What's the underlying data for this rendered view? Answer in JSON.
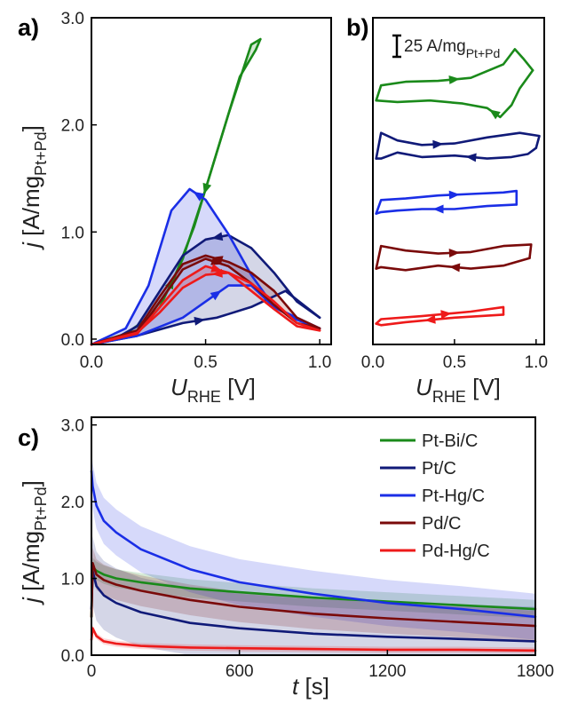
{
  "panel_labels": {
    "a": "a)",
    "b": "b)",
    "c": "c)"
  },
  "colors": {
    "Pt-Bi/C": "#1a8a1a",
    "Pt/C": "#101a78",
    "Pt-Hg/C": "#1a2ee6",
    "Pd/C": "#7a0a0a",
    "Pd-Hg/C": "#ee1a1a"
  },
  "chart_data": [
    {
      "type": "line",
      "panel": "a)",
      "xlabel": {
        "main": "U",
        "sub": "RHE",
        "unit": " [V]"
      },
      "ylabel": {
        "main": "j",
        "unit_pre": " [A/mg",
        "sub": "Pt+Pd",
        "unit_post": "]"
      },
      "xlim": [
        0.0,
        1.05
      ],
      "ylim": [
        -0.05,
        3.0
      ],
      "xticks": [
        "0.0",
        "0.5",
        "1.0"
      ],
      "yticks": [
        "0.0",
        "1.0",
        "2.0",
        "3.0"
      ],
      "series": [
        {
          "name": "Pt-Bi/C",
          "forward": [
            [
              0.0,
              -0.05
            ],
            [
              0.1,
              0.0
            ],
            [
              0.2,
              0.05
            ],
            [
              0.3,
              0.3
            ],
            [
              0.4,
              0.75
            ],
            [
              0.5,
              1.4
            ],
            [
              0.6,
              2.1
            ],
            [
              0.7,
              2.75
            ],
            [
              0.74,
              2.8
            ]
          ],
          "backward": [
            [
              0.74,
              2.8
            ],
            [
              0.72,
              2.7
            ],
            [
              0.65,
              2.45
            ],
            [
              0.55,
              1.75
            ],
            [
              0.45,
              1.05
            ],
            [
              0.35,
              0.5
            ],
            [
              0.25,
              0.2
            ],
            [
              0.15,
              0.05
            ],
            [
              0.0,
              -0.05
            ]
          ]
        },
        {
          "name": "Pt/C",
          "forward": [
            [
              0.0,
              -0.05
            ],
            [
              0.2,
              0.03
            ],
            [
              0.4,
              0.15
            ],
            [
              0.55,
              0.2
            ],
            [
              0.7,
              0.3
            ],
            [
              0.85,
              0.45
            ],
            [
              1.0,
              0.2
            ]
          ],
          "backward": [
            [
              1.0,
              0.2
            ],
            [
              0.9,
              0.35
            ],
            [
              0.8,
              0.62
            ],
            [
              0.7,
              0.85
            ],
            [
              0.6,
              0.97
            ],
            [
              0.5,
              0.93
            ],
            [
              0.4,
              0.78
            ],
            [
              0.3,
              0.45
            ],
            [
              0.2,
              0.12
            ],
            [
              0.1,
              0.0
            ],
            [
              0.0,
              -0.05
            ]
          ]
        },
        {
          "name": "Pt-Hg/C",
          "forward": [
            [
              0.0,
              -0.05
            ],
            [
              0.2,
              0.03
            ],
            [
              0.4,
              0.2
            ],
            [
              0.5,
              0.35
            ],
            [
              0.6,
              0.5
            ],
            [
              0.7,
              0.5
            ],
            [
              0.8,
              0.3
            ],
            [
              0.9,
              0.18
            ],
            [
              1.0,
              0.1
            ]
          ],
          "backward": [
            [
              1.0,
              0.1
            ],
            [
              0.8,
              0.3
            ],
            [
              0.7,
              0.6
            ],
            [
              0.6,
              0.98
            ],
            [
              0.5,
              1.3
            ],
            [
              0.43,
              1.4
            ],
            [
              0.35,
              1.2
            ],
            [
              0.25,
              0.5
            ],
            [
              0.15,
              0.1
            ],
            [
              0.0,
              -0.05
            ]
          ]
        },
        {
          "name": "Pd/C",
          "forward": [
            [
              0.0,
              -0.05
            ],
            [
              0.2,
              0.05
            ],
            [
              0.3,
              0.35
            ],
            [
              0.4,
              0.65
            ],
            [
              0.5,
              0.75
            ],
            [
              0.6,
              0.68
            ],
            [
              0.7,
              0.52
            ],
            [
              0.8,
              0.32
            ],
            [
              0.9,
              0.15
            ],
            [
              1.0,
              0.1
            ]
          ],
          "backward": [
            [
              1.0,
              0.1
            ],
            [
              0.9,
              0.2
            ],
            [
              0.8,
              0.45
            ],
            [
              0.7,
              0.62
            ],
            [
              0.6,
              0.72
            ],
            [
              0.5,
              0.78
            ],
            [
              0.4,
              0.7
            ],
            [
              0.3,
              0.4
            ],
            [
              0.2,
              0.08
            ],
            [
              0.0,
              -0.05
            ]
          ]
        },
        {
          "name": "Pd-Hg/C",
          "forward": [
            [
              0.0,
              -0.05
            ],
            [
              0.2,
              0.05
            ],
            [
              0.3,
              0.3
            ],
            [
              0.4,
              0.55
            ],
            [
              0.5,
              0.68
            ],
            [
              0.6,
              0.62
            ],
            [
              0.7,
              0.45
            ],
            [
              0.8,
              0.28
            ],
            [
              0.9,
              0.12
            ],
            [
              1.0,
              0.08
            ]
          ],
          "backward": [
            [
              1.0,
              0.08
            ],
            [
              0.9,
              0.15
            ],
            [
              0.8,
              0.35
            ],
            [
              0.7,
              0.52
            ],
            [
              0.6,
              0.62
            ],
            [
              0.5,
              0.6
            ],
            [
              0.4,
              0.48
            ],
            [
              0.3,
              0.25
            ],
            [
              0.2,
              0.06
            ],
            [
              0.0,
              -0.05
            ]
          ]
        }
      ]
    },
    {
      "type": "line",
      "panel": "b)",
      "xlabel": {
        "main": "U",
        "sub": "RHE",
        "unit": " [V]"
      },
      "xlim": [
        0.0,
        1.05
      ],
      "xticks": [
        "0.0",
        "0.5",
        "1.0"
      ],
      "scalebar": {
        "value": "25 A/mg",
        "sub": "Pt+Pd"
      },
      "series": [
        {
          "name": "Pt-Bi/C",
          "offset": 4,
          "forward": [
            [
              0.02,
              0.2
            ],
            [
              0.05,
              0.7
            ],
            [
              0.2,
              0.82
            ],
            [
              0.4,
              0.85
            ],
            [
              0.6,
              0.95
            ],
            [
              0.8,
              1.4
            ],
            [
              0.87,
              1.9
            ],
            [
              0.92,
              1.6
            ],
            [
              0.98,
              1.2
            ]
          ],
          "backward": [
            [
              0.98,
              1.2
            ],
            [
              0.9,
              0.6
            ],
            [
              0.85,
              0.05
            ],
            [
              0.78,
              -0.35
            ],
            [
              0.7,
              -0.05
            ],
            [
              0.55,
              0.1
            ],
            [
              0.35,
              0.2
            ],
            [
              0.15,
              0.15
            ],
            [
              0.02,
              0.2
            ]
          ]
        },
        {
          "name": "Pt/C",
          "offset": 3,
          "forward": [
            [
              0.02,
              0.1
            ],
            [
              0.05,
              0.95
            ],
            [
              0.15,
              0.7
            ],
            [
              0.3,
              0.55
            ],
            [
              0.5,
              0.6
            ],
            [
              0.7,
              0.8
            ],
            [
              0.9,
              0.95
            ],
            [
              1.02,
              0.85
            ],
            [
              1.0,
              0.45
            ]
          ],
          "backward": [
            [
              1.0,
              0.45
            ],
            [
              0.95,
              0.25
            ],
            [
              0.85,
              0.15
            ],
            [
              0.7,
              0.1
            ],
            [
              0.5,
              0.2
            ],
            [
              0.3,
              0.15
            ],
            [
              0.15,
              0.3
            ],
            [
              0.05,
              0.1
            ],
            [
              0.02,
              0.1
            ]
          ]
        },
        {
          "name": "Pt-Hg/C",
          "offset": 2,
          "forward": [
            [
              0.02,
              0.1
            ],
            [
              0.05,
              0.55
            ],
            [
              0.2,
              0.6
            ],
            [
              0.4,
              0.7
            ],
            [
              0.6,
              0.75
            ],
            [
              0.8,
              0.8
            ],
            [
              0.88,
              0.85
            ],
            [
              0.88,
              0.4
            ]
          ],
          "backward": [
            [
              0.88,
              0.4
            ],
            [
              0.7,
              0.35
            ],
            [
              0.5,
              0.25
            ],
            [
              0.3,
              0.25
            ],
            [
              0.15,
              0.2
            ],
            [
              0.05,
              0.15
            ],
            [
              0.02,
              0.1
            ]
          ]
        },
        {
          "name": "Pd/C",
          "offset": 1,
          "forward": [
            [
              0.02,
              0.1
            ],
            [
              0.05,
              0.85
            ],
            [
              0.2,
              0.7
            ],
            [
              0.4,
              0.6
            ],
            [
              0.6,
              0.65
            ],
            [
              0.8,
              0.85
            ],
            [
              0.97,
              0.9
            ],
            [
              0.96,
              0.45
            ]
          ],
          "backward": [
            [
              0.96,
              0.45
            ],
            [
              0.8,
              0.2
            ],
            [
              0.6,
              0.1
            ],
            [
              0.4,
              0.2
            ],
            [
              0.2,
              0.05
            ],
            [
              0.05,
              0.15
            ],
            [
              0.02,
              0.1
            ]
          ]
        },
        {
          "name": "Pd-Hg/C",
          "offset": 0,
          "forward": [
            [
              0.02,
              0.1
            ],
            [
              0.05,
              0.25
            ],
            [
              0.3,
              0.35
            ],
            [
              0.6,
              0.5
            ],
            [
              0.8,
              0.65
            ],
            [
              0.8,
              0.4
            ]
          ],
          "backward": [
            [
              0.8,
              0.4
            ],
            [
              0.5,
              0.3
            ],
            [
              0.2,
              0.15
            ],
            [
              0.05,
              0.05
            ],
            [
              0.02,
              0.1
            ]
          ]
        }
      ]
    },
    {
      "type": "line",
      "panel": "c)",
      "xlabel": {
        "main": "t",
        "unit": " [s]"
      },
      "ylabel": {
        "main": "j",
        "unit_pre": " [A/mg",
        "sub": "Pt+Pd",
        "unit_post": "]"
      },
      "xlim": [
        0,
        1800
      ],
      "ylim": [
        0.0,
        3.1
      ],
      "xticks": [
        "0",
        "600",
        "1200",
        "1800"
      ],
      "yticks": [
        "0.0",
        "1.0",
        "2.0",
        "3.0"
      ],
      "legend": {
        "placement": "top-right",
        "entries": [
          "Pt-Bi/C",
          "Pt/C",
          "Pt-Hg/C",
          "Pd/C",
          "Pd-Hg/C"
        ]
      },
      "series": [
        {
          "name": "Pt-Bi/C",
          "x": [
            0,
            5,
            20,
            50,
            100,
            200,
            400,
            600,
            900,
            1200,
            1500,
            1800
          ],
          "y": [
            0.5,
            1.15,
            1.1,
            1.05,
            1.0,
            0.95,
            0.87,
            0.82,
            0.75,
            0.7,
            0.65,
            0.6
          ],
          "band": 0.12
        },
        {
          "name": "Pt/C",
          "x": [
            0,
            5,
            20,
            50,
            100,
            200,
            400,
            600,
            900,
            1200,
            1500,
            1800
          ],
          "y": [
            0.6,
            1.1,
            0.9,
            0.78,
            0.68,
            0.56,
            0.42,
            0.35,
            0.28,
            0.24,
            0.21,
            0.18
          ],
          "band": 0.45
        },
        {
          "name": "Pt-Hg/C",
          "x": [
            0,
            5,
            20,
            50,
            100,
            200,
            400,
            600,
            900,
            1200,
            1500,
            1800
          ],
          "y": [
            2.4,
            2.2,
            1.95,
            1.75,
            1.6,
            1.38,
            1.12,
            0.95,
            0.8,
            0.68,
            0.6,
            0.5
          ],
          "band": 0.3
        },
        {
          "name": "Pd/C",
          "x": [
            0,
            5,
            20,
            50,
            100,
            200,
            400,
            600,
            900,
            1200,
            1500,
            1800
          ],
          "y": [
            0.5,
            1.2,
            1.05,
            0.98,
            0.92,
            0.84,
            0.72,
            0.63,
            0.54,
            0.48,
            0.43,
            0.38
          ],
          "band": 0.2
        },
        {
          "name": "Pd-Hg/C",
          "x": [
            0,
            5,
            20,
            50,
            100,
            200,
            400,
            600,
            900,
            1200,
            1500,
            1800
          ],
          "y": [
            0.2,
            0.35,
            0.25,
            0.18,
            0.15,
            0.12,
            0.1,
            0.09,
            0.08,
            0.07,
            0.07,
            0.06
          ],
          "band": 0.04
        }
      ]
    }
  ]
}
